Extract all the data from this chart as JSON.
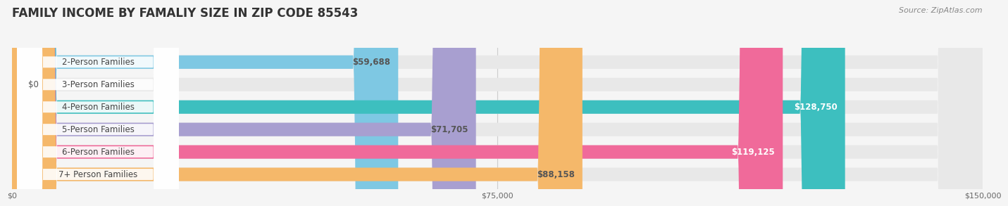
{
  "title": "FAMILY INCOME BY FAMALIY SIZE IN ZIP CODE 85543",
  "source": "Source: ZipAtlas.com",
  "categories": [
    "2-Person Families",
    "3-Person Families",
    "4-Person Families",
    "5-Person Families",
    "6-Person Families",
    "7+ Person Families"
  ],
  "values": [
    59688,
    0,
    128750,
    71705,
    119125,
    88158
  ],
  "bar_colors": [
    "#7EC8E3",
    "#C9A0C8",
    "#3DBFBF",
    "#A89FD0",
    "#F06A9A",
    "#F5B86A"
  ],
  "label_colors": [
    "#555555",
    "#555555",
    "#ffffff",
    "#555555",
    "#ffffff",
    "#555555"
  ],
  "xlim": [
    0,
    150000
  ],
  "xticks": [
    0,
    75000,
    150000
  ],
  "xtick_labels": [
    "$0",
    "$75,000",
    "$150,000"
  ],
  "value_labels": [
    "$59,688",
    "$0",
    "$128,750",
    "$71,705",
    "$119,125",
    "$88,158"
  ],
  "background_color": "#f5f5f5",
  "bar_background_color": "#e8e8e8",
  "title_fontsize": 12,
  "label_fontsize": 8.5,
  "value_fontsize": 8.5,
  "tick_fontsize": 8
}
